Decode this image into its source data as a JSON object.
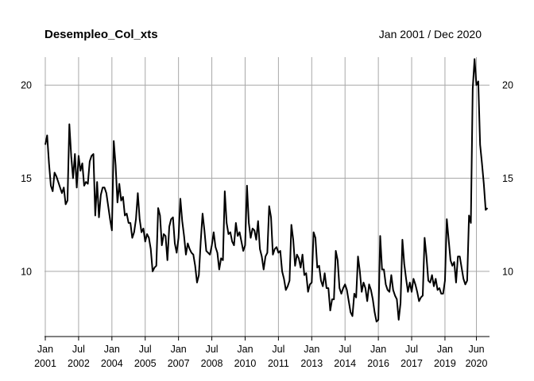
{
  "chart_data": {
    "type": "line",
    "title": "Desempleo_Col_xts",
    "subtitle": "Jan 2001 / Dec 2020",
    "xlabel": "",
    "ylabel": "",
    "x_range": [
      "2001-01",
      "2020-12"
    ],
    "ylim": [
      6.5,
      21.5
    ],
    "y_ticks": [
      10,
      15,
      20
    ],
    "grid": "vertical and horizontal grey lines at labeled ticks",
    "x_tick_labels": [
      {
        "month": "Jan",
        "year": "2001"
      },
      {
        "month": "Jul",
        "year": "2002"
      },
      {
        "month": "Jan",
        "year": "2004"
      },
      {
        "month": "Jul",
        "year": "2005"
      },
      {
        "month": "Jan",
        "year": "2007"
      },
      {
        "month": "Jul",
        "year": "2008"
      },
      {
        "month": "Jan",
        "year": "2010"
      },
      {
        "month": "Jul",
        "year": "2011"
      },
      {
        "month": "Jan",
        "year": "2013"
      },
      {
        "month": "Jul",
        "year": "2014"
      },
      {
        "month": "Jan",
        "year": "2016"
      },
      {
        "month": "Jul",
        "year": "2017"
      },
      {
        "month": "Jan",
        "year": "2019"
      },
      {
        "month": "Jun",
        "year": "2020"
      }
    ],
    "series": [
      {
        "values": [
          16.8,
          17.3,
          15.8,
          14.6,
          14.3,
          15.3,
          15.1,
          14.8,
          14.5,
          14.2,
          14.5,
          13.6,
          13.8,
          17.9,
          16.2,
          15.0,
          16.3,
          14.5,
          16.2,
          15.4,
          15.8,
          14.6,
          14.8,
          14.7,
          15.9,
          16.2,
          16.3,
          13.0,
          14.8,
          12.9,
          14.1,
          14.5,
          14.5,
          14.2,
          13.5,
          12.8,
          12.2,
          17.0,
          15.7,
          13.7,
          14.7,
          13.8,
          14.0,
          13.0,
          13.1,
          12.6,
          12.6,
          11.8,
          12.1,
          12.8,
          14.2,
          12.8,
          12.1,
          12.3,
          11.6,
          12.0,
          11.8,
          11.2,
          10.0,
          10.2,
          10.3,
          13.4,
          13.0,
          11.4,
          12.0,
          11.9,
          10.6,
          12.4,
          12.8,
          12.9,
          11.5,
          11.0,
          11.8,
          13.9,
          12.7,
          11.9,
          10.9,
          11.5,
          11.2,
          11.0,
          10.9,
          10.3,
          9.4,
          9.8,
          11.6,
          13.1,
          12.2,
          11.1,
          11.0,
          10.9,
          11.4,
          12.1,
          11.3,
          11.0,
          10.1,
          10.7,
          10.6,
          14.3,
          12.6,
          12.0,
          12.1,
          11.6,
          11.4,
          12.6,
          11.9,
          12.1,
          11.6,
          11.1,
          11.4,
          14.6,
          12.6,
          11.8,
          12.3,
          12.2,
          11.7,
          12.7,
          11.2,
          10.8,
          10.1,
          10.8,
          11.0,
          13.5,
          12.9,
          10.9,
          11.2,
          11.3,
          11.0,
          11.1,
          10.0,
          9.6,
          9.0,
          9.2,
          9.5,
          12.5,
          11.7,
          10.3,
          10.9,
          10.7,
          10.2,
          10.9,
          9.8,
          9.9,
          8.9,
          9.3,
          9.4,
          12.1,
          11.8,
          10.2,
          10.3,
          9.5,
          9.2,
          9.9,
          9.1,
          9.1,
          7.9,
          8.5,
          8.5,
          11.1,
          10.6,
          9.1,
          8.8,
          9.1,
          9.3,
          9.0,
          8.4,
          7.8,
          7.6,
          8.8,
          8.6,
          10.8,
          10.0,
          8.9,
          9.4,
          9.1,
          8.4,
          9.3,
          9.0,
          8.5,
          7.8,
          7.3,
          7.4,
          11.9,
          10.1,
          10.1,
          9.3,
          9.0,
          8.9,
          9.8,
          9.0,
          8.7,
          8.5,
          7.4,
          8.3,
          11.7,
          10.4,
          9.6,
          8.9,
          9.4,
          8.9,
          9.6,
          9.3,
          8.9,
          8.4,
          8.6,
          8.7,
          11.8,
          10.8,
          9.5,
          9.4,
          9.8,
          9.2,
          9.6,
          9.0,
          9.1,
          8.8,
          8.8,
          9.5,
          12.8,
          11.7,
          10.6,
          10.3,
          10.5,
          9.4,
          10.8,
          10.8,
          10.2,
          9.6,
          9.3,
          9.5,
          13.0,
          12.6,
          19.8,
          21.4,
          20.0,
          20.2,
          16.8,
          15.8,
          14.7,
          13.3,
          13.4
        ]
      }
    ]
  }
}
